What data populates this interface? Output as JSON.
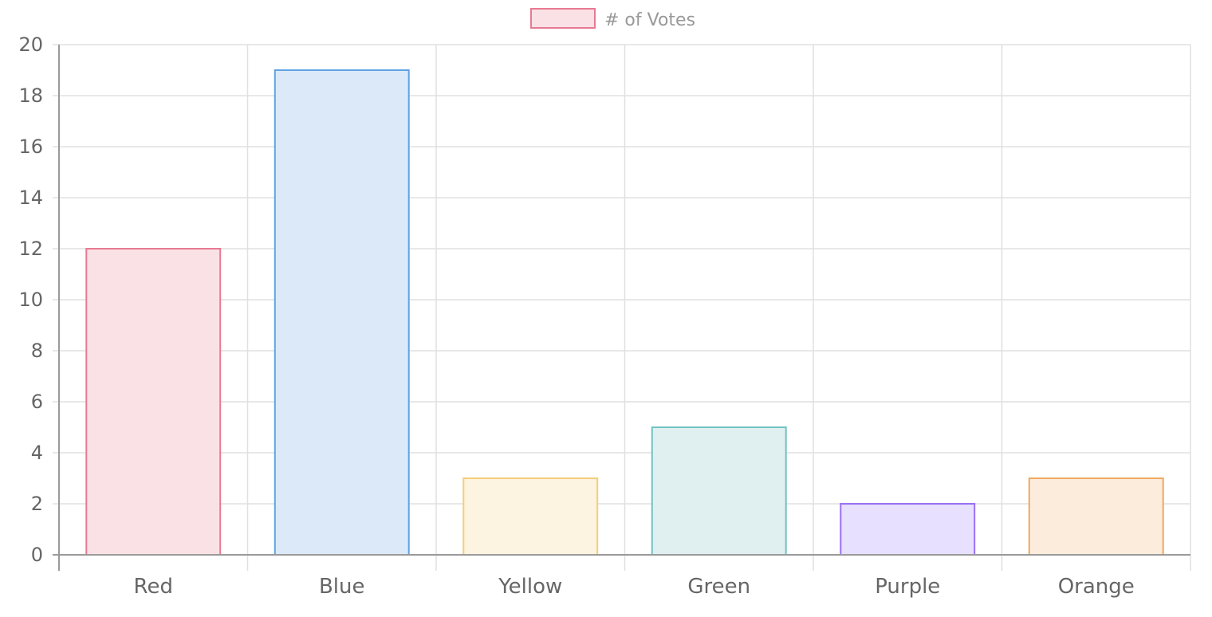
{
  "chart_data": {
    "type": "bar",
    "categories": [
      "Red",
      "Blue",
      "Yellow",
      "Green",
      "Purple",
      "Orange"
    ],
    "series": [
      {
        "name": "# of Votes",
        "values": [
          12,
          19,
          3,
          5,
          2,
          3
        ]
      }
    ],
    "ylim": [
      0,
      20
    ],
    "yticks": [
      0,
      2,
      4,
      6,
      8,
      10,
      12,
      14,
      16,
      18,
      20
    ],
    "grid": true,
    "legend_position": "top",
    "bar_fill_colors": [
      "#fae1e6",
      "#dce9f9",
      "#fcf3e0",
      "#e0f0f0",
      "#e7e0fe",
      "#fcecdc"
    ],
    "bar_border_colors": [
      "#e77a91",
      "#5fa3e3",
      "#f5cd79",
      "#72c2c2",
      "#9a70f2",
      "#f0a95d"
    ],
    "legend_fill_color": "#fae1e6",
    "legend_border_color": "#e77a91"
  }
}
